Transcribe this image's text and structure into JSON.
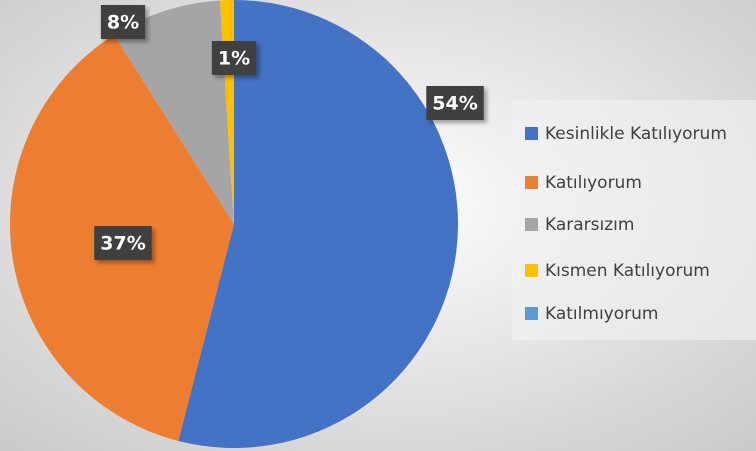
{
  "chart_data": {
    "type": "pie",
    "categories": [
      "Kesinlikle Katılıyorum",
      "Katılıyorum",
      "Kararsızım",
      "Kısmen Katılıyorum",
      "Katılmıyorum"
    ],
    "values": [
      54,
      37,
      8,
      1,
      0
    ],
    "value_labels": [
      "54%",
      "37%",
      "8%",
      "1%",
      null
    ],
    "colors": [
      "#4472c4",
      "#ed7d31",
      "#a5a5a5",
      "#ffc000",
      "#5b9bd5"
    ],
    "legend": "right"
  }
}
